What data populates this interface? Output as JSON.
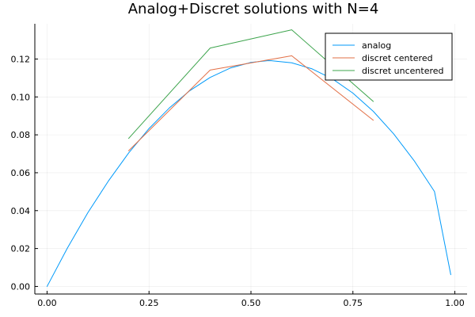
{
  "chart_data": {
    "type": "line",
    "title": "Analog+Discret solutions with N=4",
    "xlabel": "",
    "ylabel": "",
    "xlim": [
      -0.03,
      1.03
    ],
    "ylim": [
      -0.004,
      0.1386
    ],
    "xticks": [
      0.0,
      0.25,
      0.5,
      0.75,
      1.0
    ],
    "xtick_labels": [
      "0.00",
      "0.25",
      "0.50",
      "0.75",
      "1.00"
    ],
    "yticks": [
      0.0,
      0.02,
      0.04,
      0.06,
      0.08,
      0.1,
      0.12
    ],
    "ytick_labels": [
      "0.00",
      "0.02",
      "0.04",
      "0.06",
      "0.08",
      "0.10",
      "0.12"
    ],
    "grid": true,
    "legend_position": "top-right",
    "series": [
      {
        "name": "analog",
        "color": "#009AFA",
        "x": [
          0.0,
          0.05,
          0.1,
          0.15,
          0.2,
          0.25,
          0.3,
          0.35,
          0.4,
          0.45,
          0.5,
          0.54,
          0.55,
          0.6,
          0.65,
          0.7,
          0.75,
          0.8,
          0.85,
          0.9,
          0.95,
          0.99
        ],
        "values": [
          0.0,
          0.0203,
          0.0389,
          0.0555,
          0.0704,
          0.0833,
          0.0942,
          0.1033,
          0.1103,
          0.1153,
          0.1182,
          0.1191,
          0.1191,
          0.118,
          0.1148,
          0.1095,
          0.102,
          0.0924,
          0.0805,
          0.0664,
          0.0501,
          0.0062
        ]
      },
      {
        "name": "discret centered",
        "color": "#E26F46",
        "x": [
          0.2,
          0.4,
          0.6,
          0.8
        ],
        "values": [
          0.0716,
          0.1142,
          0.1217,
          0.0877
        ]
      },
      {
        "name": "discret uncentered",
        "color": "#3DA44D",
        "x": [
          0.2,
          0.4,
          0.6,
          0.8
        ],
        "values": [
          0.0781,
          0.1258,
          0.1354,
          0.0976
        ]
      }
    ]
  }
}
